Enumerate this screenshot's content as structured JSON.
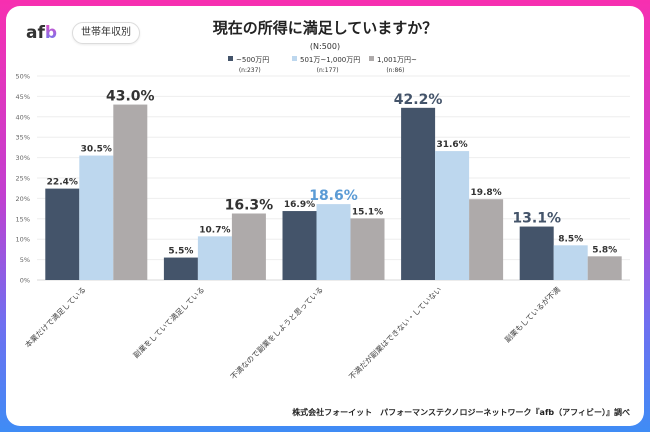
{
  "brand": {
    "logo_prefix": "af",
    "logo_suffix": "b",
    "badge": "世帯年収別"
  },
  "footer": "株式会社フォーイット　パフォーマンステクノロジーネットワーク『afb（アフィビー）』調べ",
  "chart_data": {
    "type": "bar",
    "title": "現在の所得に満足していますか？",
    "subtitle": "(N:500)",
    "xlabel": "",
    "ylabel": "",
    "ylim": [
      0,
      50
    ],
    "yticks": [
      "0%",
      "5%",
      "10%",
      "15%",
      "20%",
      "25%",
      "30%",
      "35%",
      "40%",
      "45%",
      "50%"
    ],
    "grid": true,
    "legend_position": "top-center",
    "categories": [
      "本業だけで満足している",
      "副業をしていて満足している",
      "不満なので副業をしようと思っている",
      "不満だが副業はできない・していない",
      "副業もしているが不満"
    ],
    "series": [
      {
        "name": "~500万円",
        "n": "(n:237)",
        "color": "#44546a",
        "values": [
          22.4,
          5.5,
          16.9,
          42.2,
          13.1
        ]
      },
      {
        "name": "501万~1,000万円",
        "n": "(n:177)",
        "color": "#bdd7ee",
        "values": [
          30.5,
          10.7,
          18.6,
          31.6,
          8.5
        ]
      },
      {
        "name": "1,001万円~",
        "n": "(n:86)",
        "color": "#aeaaaa",
        "values": [
          43.0,
          16.3,
          15.1,
          19.8,
          5.8
        ]
      }
    ],
    "data_labels": [
      [
        "22.4%",
        "5.5%",
        "16.9%",
        "42.2%",
        "13.1%"
      ],
      [
        "30.5%",
        "10.7%",
        "18.6%",
        "31.6%",
        "8.5%"
      ],
      [
        "43.0%",
        "16.3%",
        "15.1%",
        "19.8%",
        "5.8%"
      ]
    ],
    "highlighted_labels": [
      {
        "series": 2,
        "category": 0,
        "color": "#333333"
      },
      {
        "series": 2,
        "category": 1,
        "color": "#333333"
      },
      {
        "series": 1,
        "category": 2,
        "color": "#5b9bd5"
      },
      {
        "series": 0,
        "category": 3,
        "color": "#44546a"
      },
      {
        "series": 0,
        "category": 4,
        "color": "#44546a"
      }
    ]
  }
}
